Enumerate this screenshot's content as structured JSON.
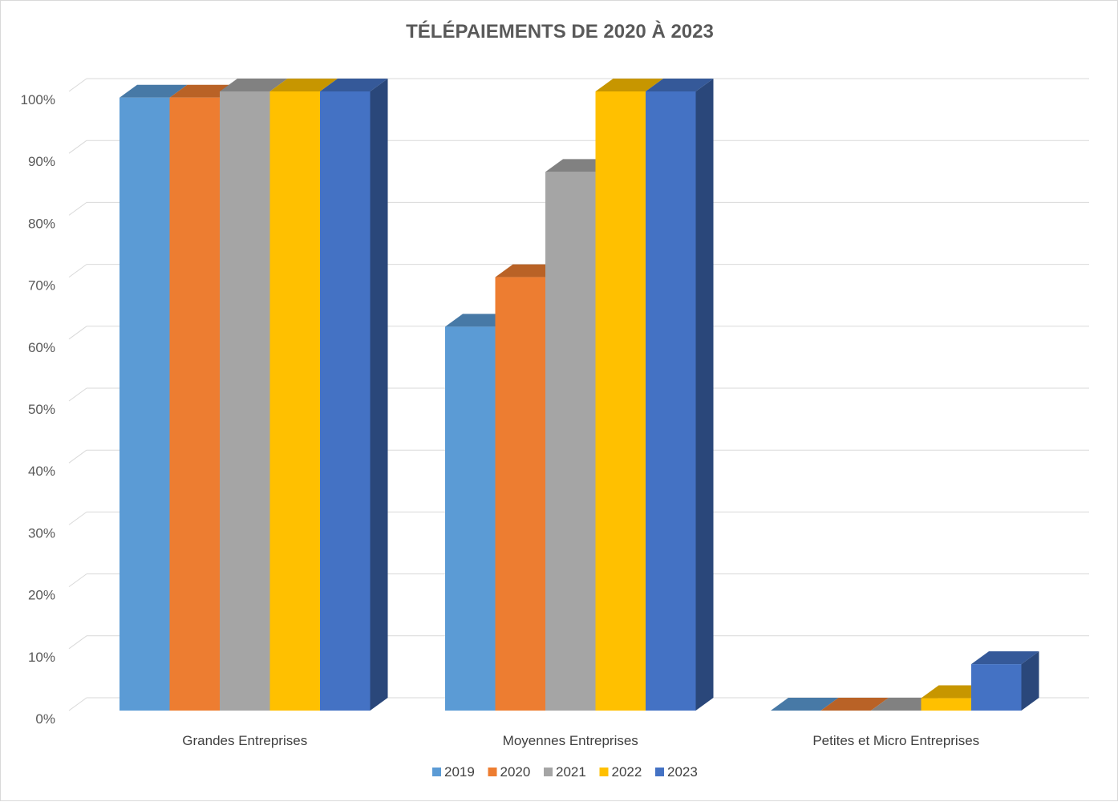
{
  "chart_data": {
    "type": "bar",
    "title": "TÉLÉPAIEMENTS DE 2020 À 2023",
    "categories": [
      "Grandes Entreprises",
      "Moyennes Entreprises",
      "Petites et Micro Entreprises"
    ],
    "series": [
      {
        "name": "2019",
        "color": "#5B9BD5",
        "values": [
          0.99,
          0.62,
          0.0
        ]
      },
      {
        "name": "2020",
        "color": "#ED7D31",
        "values": [
          0.99,
          0.7,
          0.0
        ]
      },
      {
        "name": "2021",
        "color": "#A5A5A5",
        "values": [
          1.0,
          0.87,
          0.0
        ]
      },
      {
        "name": "2022",
        "color": "#FFC000",
        "values": [
          1.0,
          1.0,
          0.02
        ]
      },
      {
        "name": "2023",
        "color": "#4472C4",
        "values": [
          1.0,
          1.0,
          0.075
        ]
      }
    ],
    "yticks": [
      "0%",
      "10%",
      "20%",
      "30%",
      "40%",
      "50%",
      "60%",
      "70%",
      "80%",
      "90%",
      "100%"
    ],
    "ylim": [
      0,
      1
    ],
    "xlabel": "",
    "ylabel": "",
    "grid": true,
    "legend_position": "bottom",
    "style": "3d-clustered-column"
  }
}
